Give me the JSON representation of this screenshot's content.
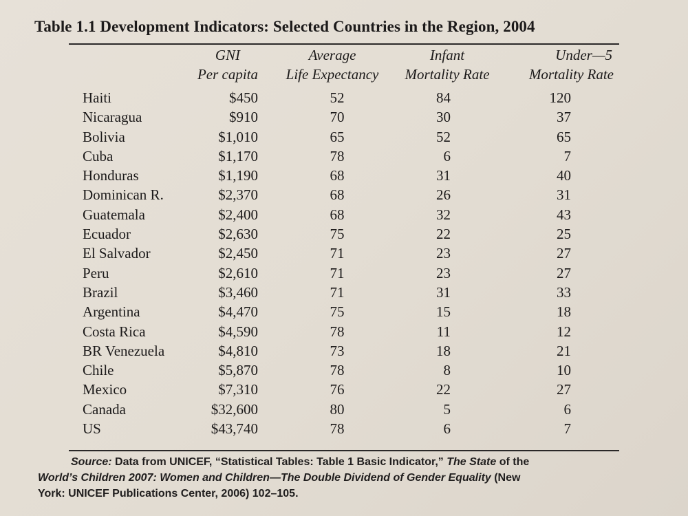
{
  "table": {
    "title": "Table 1.1 Development Indicators: Selected Countries in the Region, 2004",
    "headers": {
      "gni_1": "GNI",
      "gni_2": "Per capita",
      "life_1": "Average",
      "life_2": "Life Expectancy",
      "infant_1": "Infant",
      "infant_2": "Mortality Rate",
      "under5_1": "Under—5",
      "under5_2": "Mortality Rate"
    },
    "rows": [
      {
        "country": "Haiti",
        "gni": "$450",
        "life": "52",
        "infant": "84",
        "under5": "120"
      },
      {
        "country": "Nicaragua",
        "gni": "$910",
        "life": "70",
        "infant": "30",
        "under5": "37"
      },
      {
        "country": "Bolivia",
        "gni": "$1,010",
        "life": "65",
        "infant": "52",
        "under5": "65"
      },
      {
        "country": "Cuba",
        "gni": "$1,170",
        "life": "78",
        "infant": "6",
        "under5": "7"
      },
      {
        "country": "Honduras",
        "gni": "$1,190",
        "life": "68",
        "infant": "31",
        "under5": "40"
      },
      {
        "country": "Dominican R.",
        "gni": "$2,370",
        "life": "68",
        "infant": "26",
        "under5": "31"
      },
      {
        "country": "Guatemala",
        "gni": "$2,400",
        "life": "68",
        "infant": "32",
        "under5": "43"
      },
      {
        "country": "Ecuador",
        "gni": "$2,630",
        "life": "75",
        "infant": "22",
        "under5": "25"
      },
      {
        "country": "El Salvador",
        "gni": "$2,450",
        "life": "71",
        "infant": "23",
        "under5": "27"
      },
      {
        "country": "Peru",
        "gni": "$2,610",
        "life": "71",
        "infant": "23",
        "under5": "27"
      },
      {
        "country": "Brazil",
        "gni": "$3,460",
        "life": "71",
        "infant": "31",
        "under5": "33"
      },
      {
        "country": "Argentina",
        "gni": "$4,470",
        "life": "75",
        "infant": "15",
        "under5": "18"
      },
      {
        "country": "Costa Rica",
        "gni": "$4,590",
        "life": "78",
        "infant": "11",
        "under5": "12"
      },
      {
        "country": "BR Venezuela",
        "gni": "$4,810",
        "life": "73",
        "infant": "18",
        "under5": "21"
      },
      {
        "country": "Chile",
        "gni": "$5,870",
        "life": "78",
        "infant": "8",
        "under5": "10"
      },
      {
        "country": "Mexico",
        "gni": "$7,310",
        "life": "76",
        "infant": "22",
        "under5": "27"
      },
      {
        "country": "Canada",
        "gni": "$32,600",
        "life": "80",
        "infant": "5",
        "under5": "6"
      },
      {
        "country": "US",
        "gni": "$43,740",
        "life": "78",
        "infant": "6",
        "under5": "7"
      }
    ],
    "source": {
      "label": "Source:",
      "text_1": " Data from UNICEF, “Statistical Tables: Table 1 Basic Indicator,” ",
      "italic_1": "The State",
      "text_2": " of the",
      "italic_2": "World’s Children 2007: Women and Children—The Double Dividend of Gender Equality",
      "text_3": " (New",
      "text_4": "York: UNICEF Publications Center, 2006) 102–105."
    }
  }
}
